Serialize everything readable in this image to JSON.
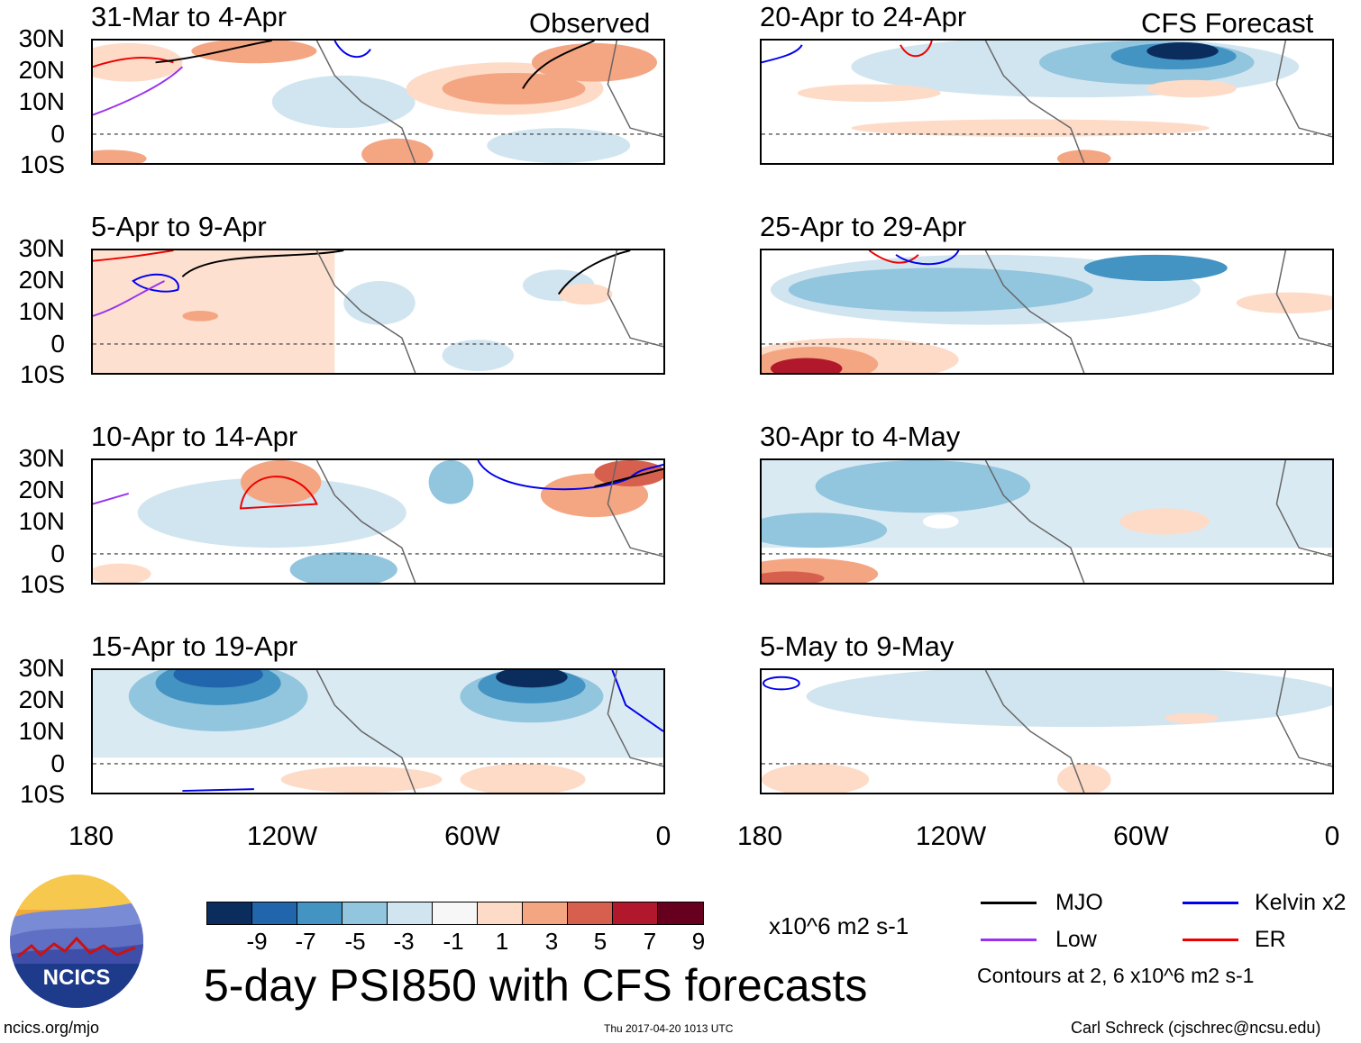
{
  "labels": {
    "observed": "Observed",
    "forecast": "CFS Forecast"
  },
  "y_axis": [
    "30N",
    "20N",
    "10N",
    "0",
    "10S"
  ],
  "x_axis": [
    "180",
    "120W",
    "60W",
    "0"
  ],
  "panels_left": [
    "31-Mar to 4-Apr",
    "5-Apr to 9-Apr",
    "10-Apr to 14-Apr",
    "15-Apr to 19-Apr"
  ],
  "panels_right": [
    "20-Apr to 24-Apr",
    "25-Apr to 29-Apr",
    "30-Apr to 4-May",
    "5-May to 9-May"
  ],
  "colorbar": {
    "colors": [
      "#0a2d5e",
      "#2166ac",
      "#4393c3",
      "#92c5de",
      "#d1e5f0",
      "#f7f7f7",
      "#fddbc7",
      "#f4a582",
      "#d6604d",
      "#b2182b",
      "#67001f"
    ],
    "ticks": [
      "-9",
      "-7",
      "-5",
      "-3",
      "-1",
      "1",
      "3",
      "5",
      "7",
      "9"
    ],
    "units": "x10^6 m2 s-1"
  },
  "legend": {
    "mjo": "MJO",
    "kelvin": "Kelvin x2",
    "low": "Low",
    "er": "ER",
    "mjo_color": "#000000",
    "kelvin_color": "#0000ee",
    "low_color": "#9932ee",
    "er_color": "#ee0000",
    "note": "Contours at 2, 6 x10^6 m2 s-1"
  },
  "logo": {
    "text": "NCICS"
  },
  "main_title": "5-day PSI850 with CFS forecasts",
  "footer": {
    "url": "ncics.org/mjo",
    "timestamp": "Thu 2017-04-20 1013 UTC",
    "author": "Carl Schreck (cjschrec@ncsu.edu)"
  }
}
